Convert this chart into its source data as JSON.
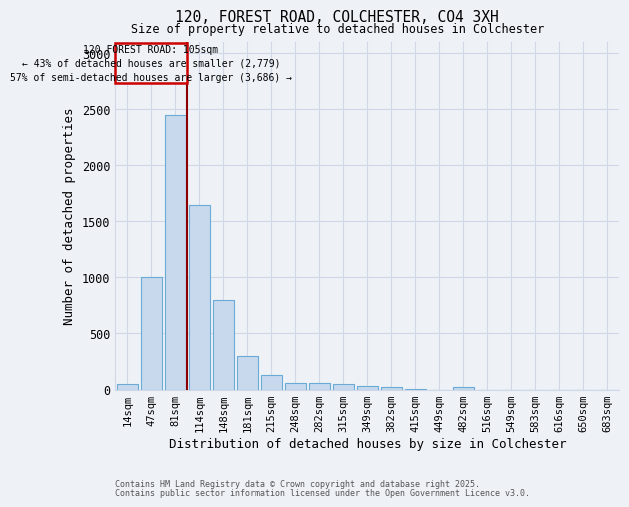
{
  "title1": "120, FOREST ROAD, COLCHESTER, CO4 3XH",
  "title2": "Size of property relative to detached houses in Colchester",
  "xlabel": "Distribution of detached houses by size in Colchester",
  "ylabel": "Number of detached properties",
  "categories": [
    "14sqm",
    "47sqm",
    "81sqm",
    "114sqm",
    "148sqm",
    "181sqm",
    "215sqm",
    "248sqm",
    "282sqm",
    "315sqm",
    "349sqm",
    "382sqm",
    "415sqm",
    "449sqm",
    "482sqm",
    "516sqm",
    "549sqm",
    "583sqm",
    "616sqm",
    "650sqm",
    "683sqm"
  ],
  "values": [
    50,
    1000,
    2450,
    1650,
    800,
    300,
    130,
    60,
    55,
    45,
    35,
    20,
    5,
    0,
    25,
    0,
    0,
    0,
    0,
    0,
    0
  ],
  "bar_color": "#c8d9ee",
  "bar_edge_color": "#6aaad4",
  "grid_color": "#d0d8e8",
  "vline_color": "#8b0000",
  "annotation_line1": "120 FOREST ROAD: 105sqm",
  "annotation_line2": "← 43% of detached houses are smaller (2,779)",
  "annotation_line3": "57% of semi-detached houses are larger (3,686) →",
  "annotation_box_color": "#cc0000",
  "footnote1": "Contains HM Land Registry data © Crown copyright and database right 2025.",
  "footnote2": "Contains public sector information licensed under the Open Government Licence v3.0.",
  "ylim": [
    0,
    3100
  ],
  "background_color": "#eef2f7",
  "vline_bar_index": 2.47
}
